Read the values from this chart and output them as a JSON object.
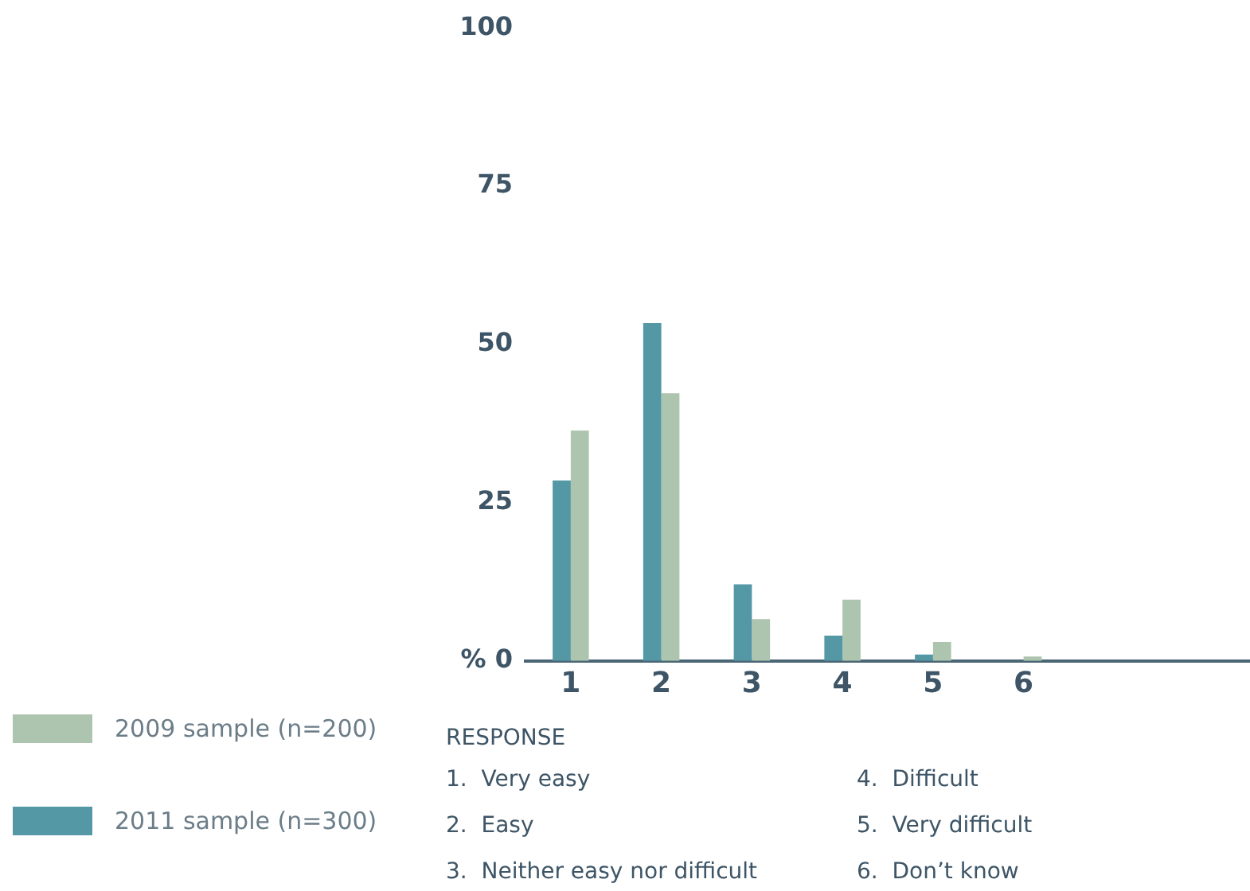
{
  "chart_data": {
    "type": "bar",
    "categories": [
      "1",
      "2",
      "3",
      "4",
      "5",
      "6",
      null,
      null
    ],
    "series": [
      {
        "name": "2011 sample (n=300)",
        "color": "#5497a5",
        "values": [
          28.5,
          53.4,
          12.1,
          4,
          1,
          0,
          null,
          null
        ]
      },
      {
        "name": "2009 sample (n=200)",
        "color": "#adc5af",
        "values": [
          36.4,
          42.3,
          6.6,
          9.7,
          3,
          0.7,
          null,
          null
        ]
      }
    ],
    "ylim": [
      0,
      100
    ],
    "yticks": [
      {
        "value": 0,
        "label": "% 0"
      },
      25,
      50,
      75,
      100
    ],
    "grid": false,
    "legend": "bottom left",
    "annotations": [
      "RESPONSE",
      "1.  Very easy",
      "2.  Easy",
      "3.  Neither easy nor difficult",
      "4.  Difficult",
      "5.  Very difficult",
      "6.  Don’t know"
    ]
  }
}
